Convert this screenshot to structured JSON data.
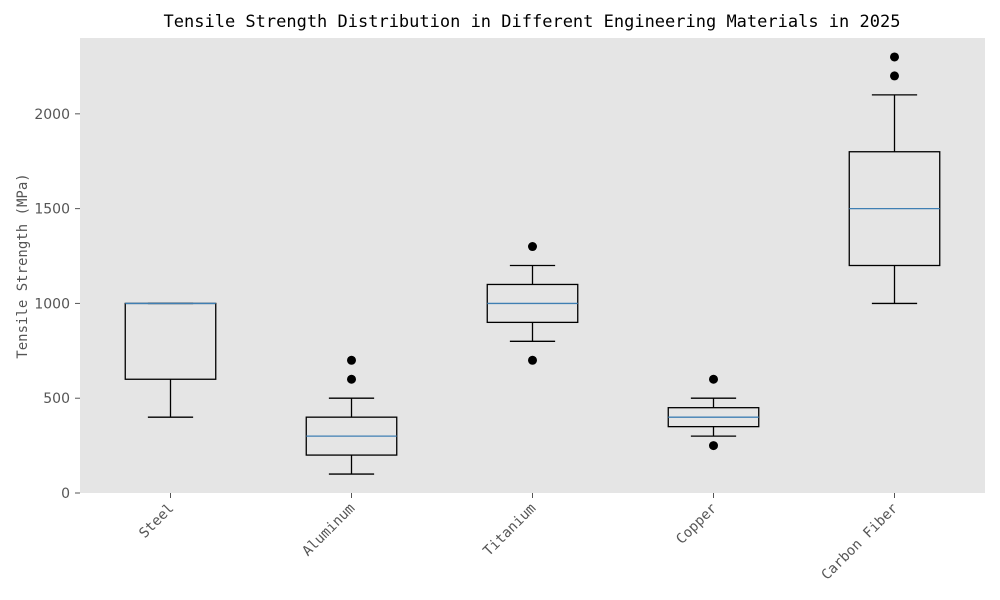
{
  "chart_data": {
    "type": "boxplot",
    "title": "Tensile Strength Distribution in Different Engineering Materials in 2025",
    "xlabel": "",
    "ylabel": "Tensile Strength (MPa)",
    "ylim": [
      0,
      2400
    ],
    "yticks": [
      0,
      500,
      1000,
      1500,
      2000
    ],
    "grid": false,
    "categories": [
      "Steel",
      "Aluminum",
      "Titanium",
      "Copper",
      "Carbon Fiber"
    ],
    "boxes": [
      {
        "whisker_low": 400,
        "q1": 600,
        "median": 1000,
        "q3": 1000,
        "whisker_high": 1000,
        "outliers": []
      },
      {
        "whisker_low": 100,
        "q1": 200,
        "median": 300,
        "q3": 400,
        "whisker_high": 500,
        "outliers": [
          600,
          700
        ]
      },
      {
        "whisker_low": 800,
        "q1": 900,
        "median": 1000,
        "q3": 1100,
        "whisker_high": 1200,
        "outliers": [
          700,
          1300
        ]
      },
      {
        "whisker_low": 300,
        "q1": 350,
        "median": 400,
        "q3": 450,
        "whisker_high": 500,
        "outliers": [
          250,
          600
        ]
      },
      {
        "whisker_low": 1000,
        "q1": 1200,
        "median": 1500,
        "q3": 1800,
        "whisker_high": 2100,
        "outliers": [
          2200,
          2300
        ]
      }
    ],
    "colors": {
      "plot_background": "#e5e5e5",
      "box_edge": "#000000",
      "median": "#3f7fb3",
      "outlier": "#000000"
    }
  }
}
